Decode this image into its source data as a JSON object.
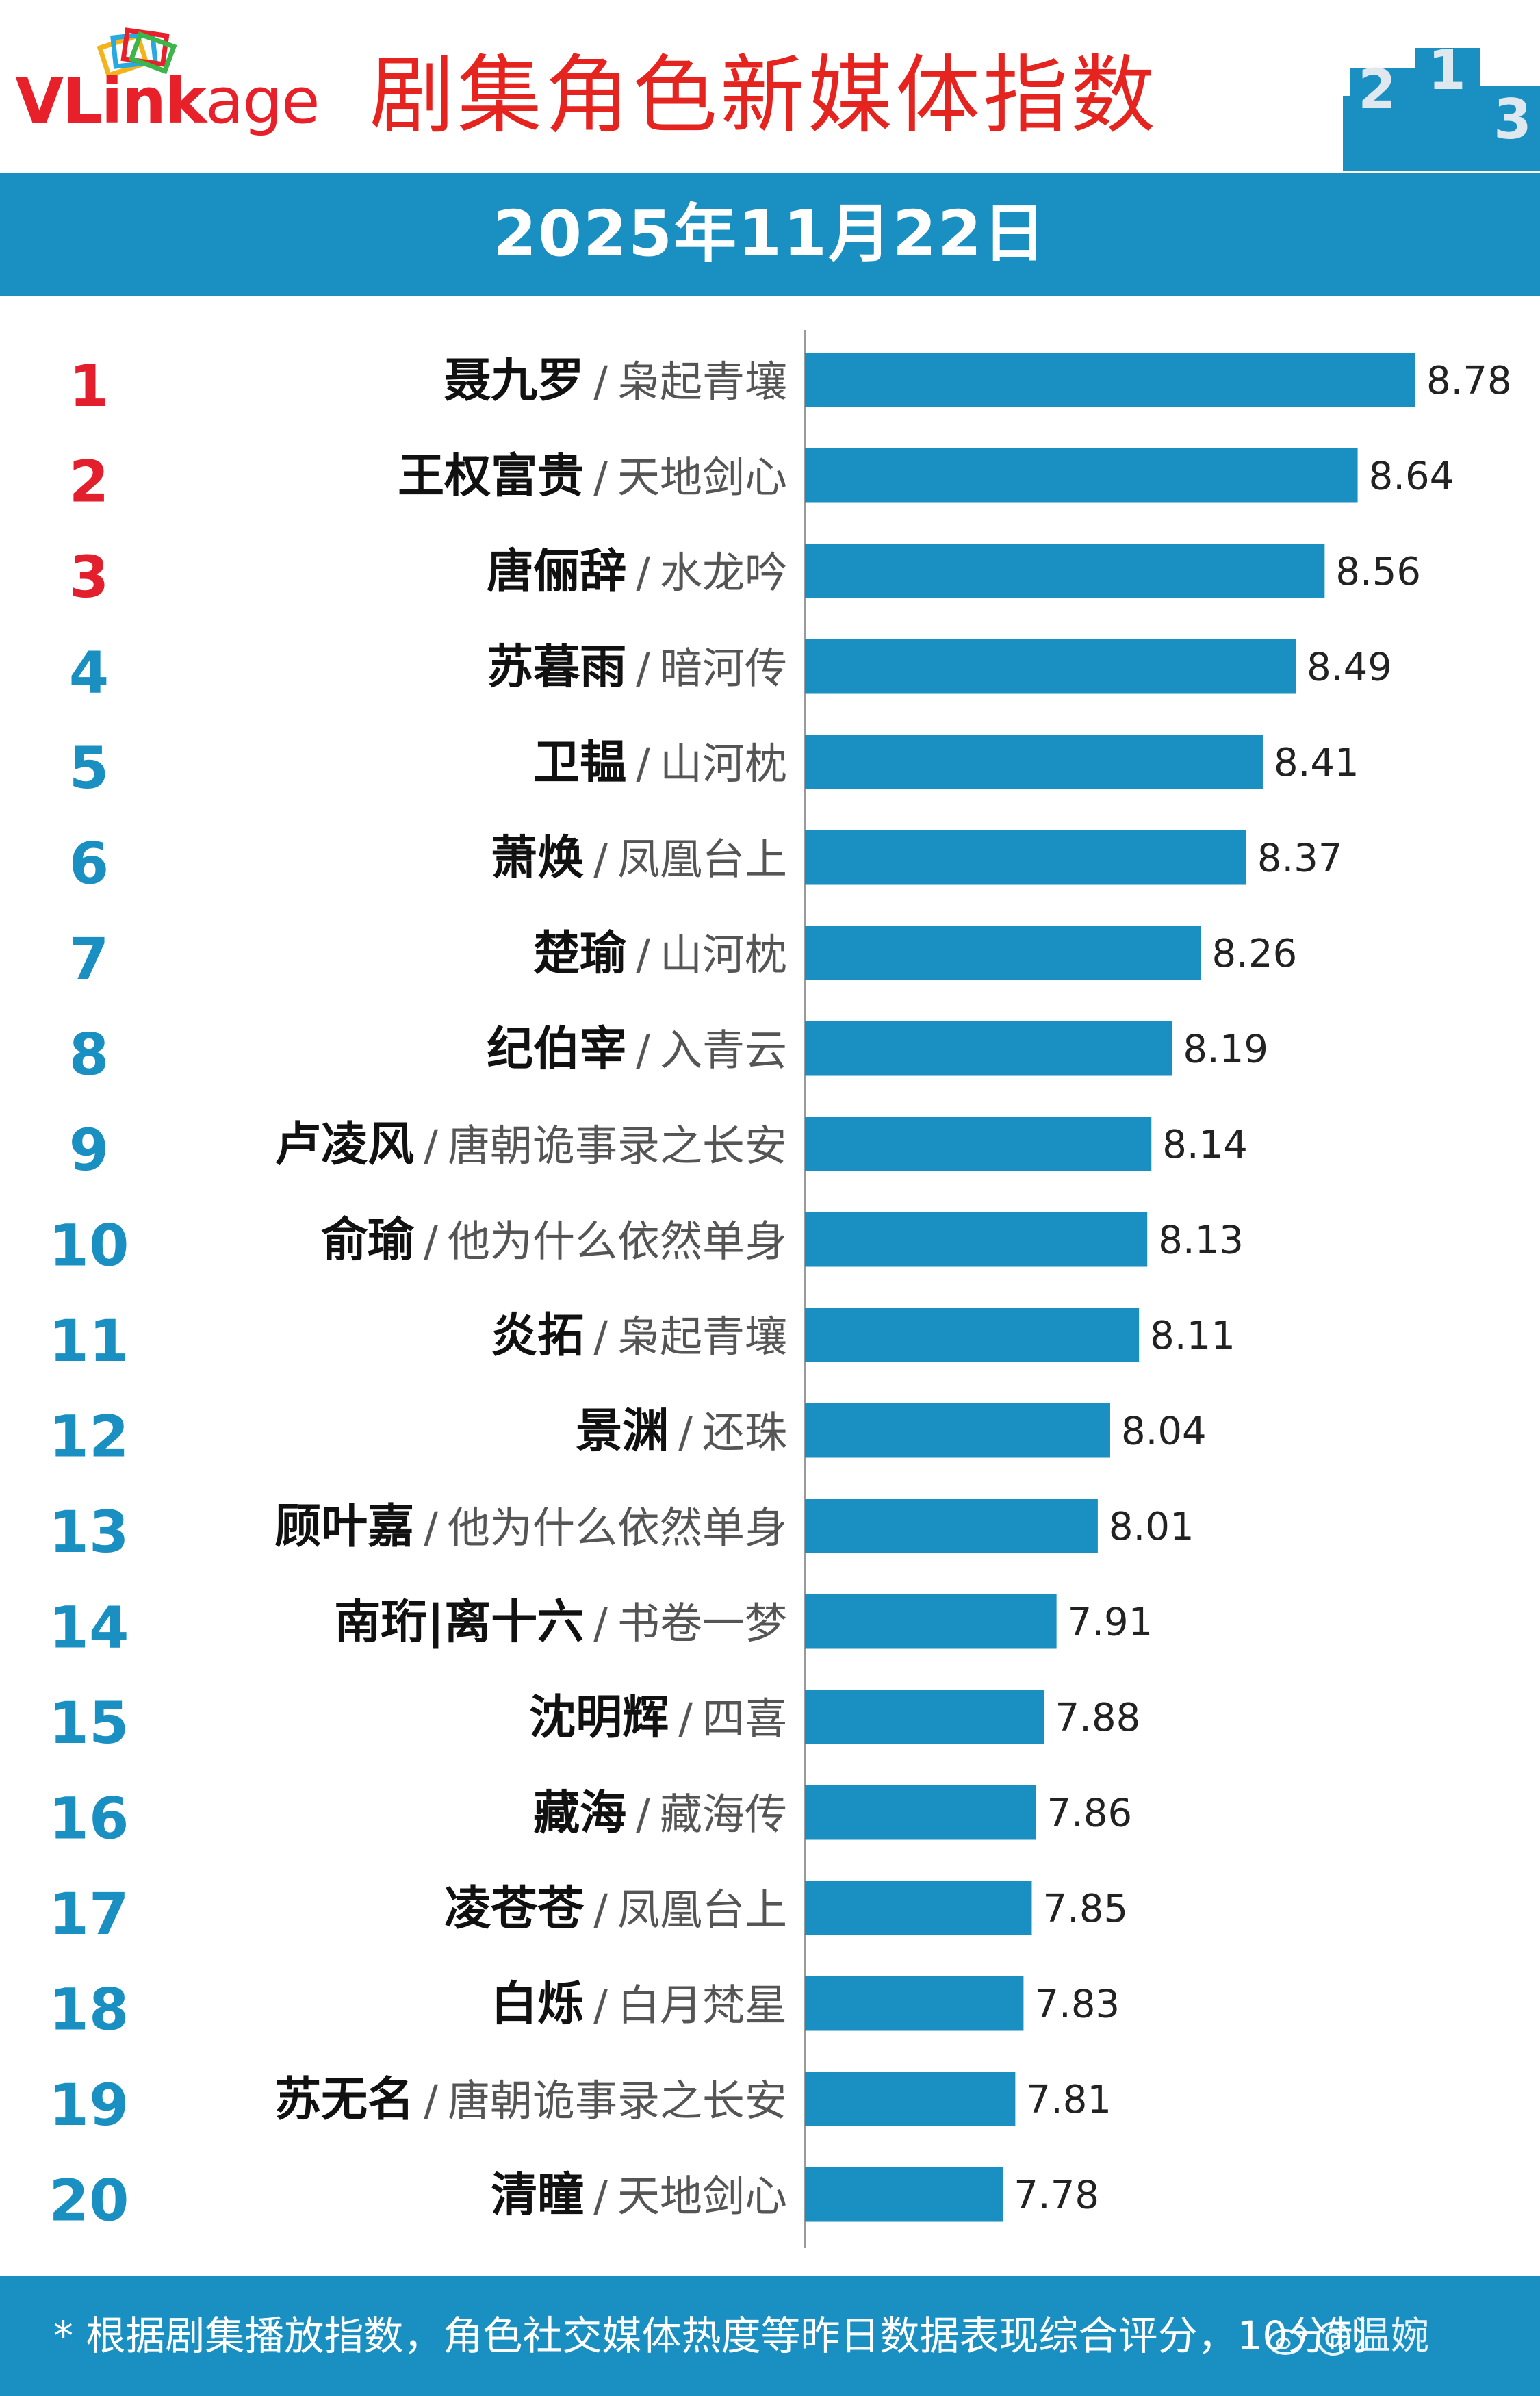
{
  "header": {
    "brand": {
      "v": "V",
      "link": "Link",
      "age": "age"
    },
    "title": "剧集角色新媒体指数",
    "podium_label": "2 1 3",
    "date": "2025年11月22日"
  },
  "footer": {
    "note": "* 根据剧集播放指数，角色社交媒体热度等昨日数据表现综合评分，10分制",
    "watermark": "@温婉"
  },
  "colors": {
    "bar": "#1a8fc2",
    "rank_top": "#e31e2d",
    "rank_rest": "#1a8fc2",
    "header_band": "#1a8fc2",
    "title_red": "#e52420"
  },
  "chart_data": {
    "type": "bar",
    "orientation": "horizontal",
    "xlim": [
      7.3,
      8.8
    ],
    "ranks": [
      "1",
      "2",
      "3",
      "4",
      "5",
      "6",
      "7",
      "8",
      "9",
      "10",
      "11",
      "12",
      "13",
      "14",
      "15",
      "16",
      "17",
      "18",
      "19",
      "20"
    ],
    "roles": [
      "聂九罗",
      "王权富贵",
      "唐俪辞",
      "苏暮雨",
      "卫韫",
      "萧焕",
      "楚瑜",
      "纪伯宰",
      "卢凌风",
      "俞瑜",
      "炎拓",
      "景渊",
      "顾叶嘉",
      "南珩|离十六",
      "沈明辉",
      "藏海",
      "凌苍苍",
      "白烁",
      "苏无名",
      "清瞳"
    ],
    "shows": [
      "枭起青壤",
      "天地剑心",
      "水龙吟",
      "暗河传",
      "山河枕",
      "凤凰台上",
      "山河枕",
      "入青云",
      "唐朝诡事录之长安",
      "他为什么依然单身",
      "枭起青壤",
      "还珠",
      "他为什么依然单身",
      "书卷一梦",
      "四喜",
      "藏海传",
      "凤凰台上",
      "白月梵星",
      "唐朝诡事录之长安",
      "天地剑心"
    ],
    "separator": "/",
    "values": [
      8.78,
      8.64,
      8.56,
      8.49,
      8.41,
      8.37,
      8.26,
      8.19,
      8.14,
      8.13,
      8.11,
      8.04,
      8.01,
      7.91,
      7.88,
      7.86,
      7.85,
      7.83,
      7.81,
      7.78
    ]
  }
}
